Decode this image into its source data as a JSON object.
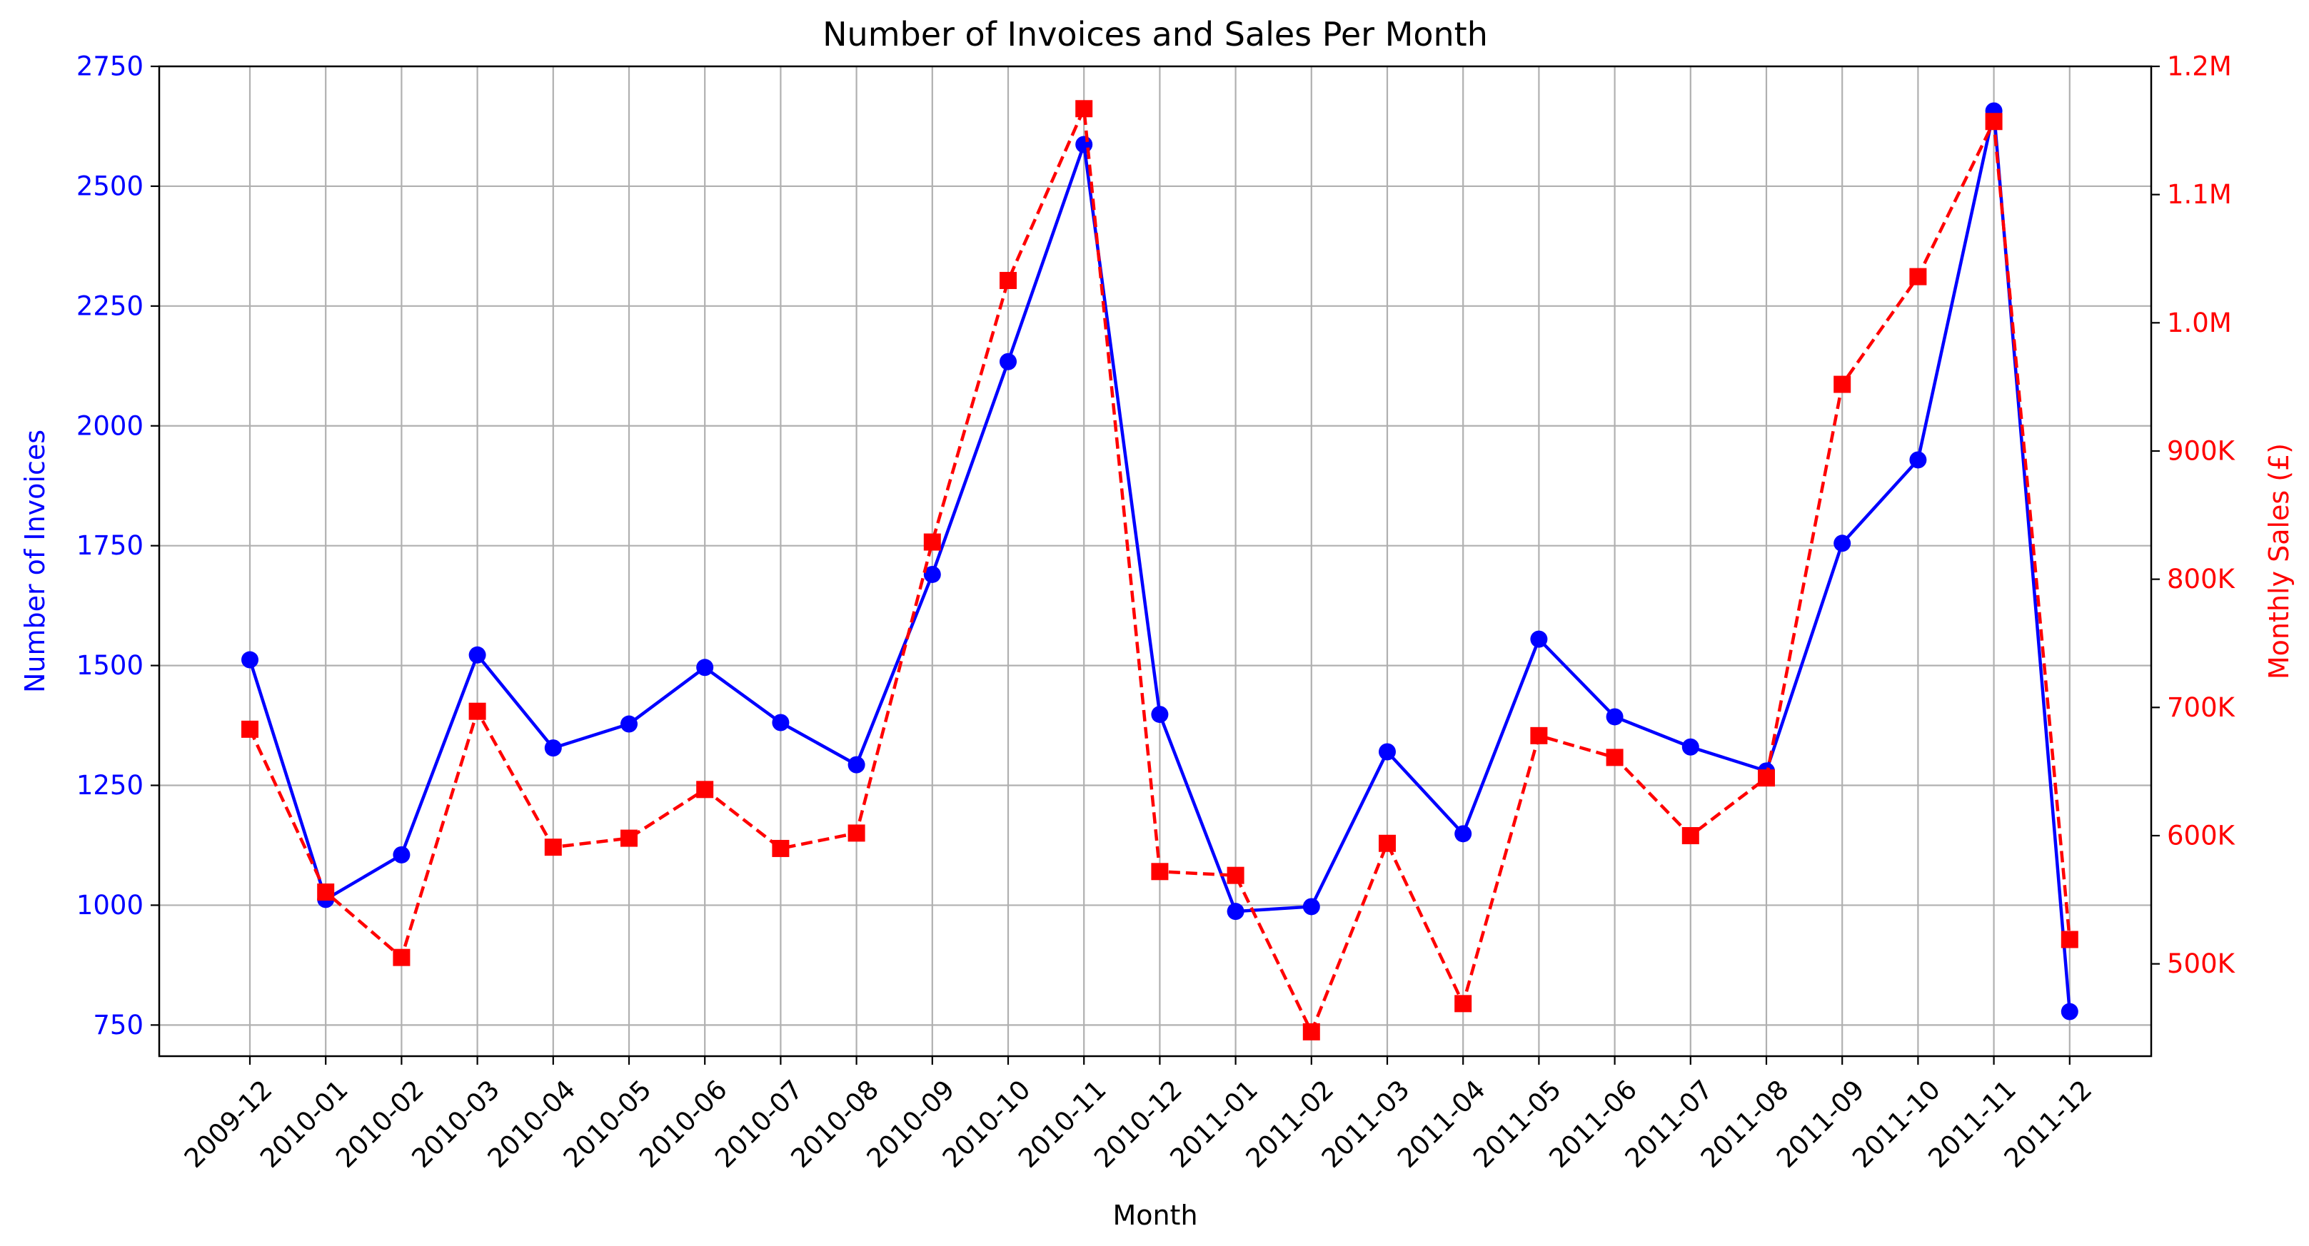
{
  "chart_data": {
    "type": "line",
    "title": "Number of Invoices and Sales Per Month",
    "xlabel": "Month",
    "ylabel_left": "Number of Invoices",
    "ylabel_right": "Monthly Sales (£)",
    "categories": [
      "2009-12",
      "2010-01",
      "2010-02",
      "2010-03",
      "2010-04",
      "2010-05",
      "2010-06",
      "2010-07",
      "2010-08",
      "2010-09",
      "2010-10",
      "2010-11",
      "2010-12",
      "2011-01",
      "2011-02",
      "2011-03",
      "2011-04",
      "2011-05",
      "2011-06",
      "2011-07",
      "2011-08",
      "2011-09",
      "2011-10",
      "2011-11",
      "2011-12"
    ],
    "left_axis": {
      "ylim": [
        685,
        2750
      ],
      "ticks": [
        750,
        1000,
        1250,
        1500,
        1750,
        2000,
        2250,
        2500,
        2750
      ],
      "tick_labels": [
        "750",
        "1000",
        "1250",
        "1500",
        "1750",
        "2000",
        "2250",
        "2500",
        "2750"
      ],
      "color": "#0000ff"
    },
    "right_axis": {
      "ylim": [
        428000,
        1200000
      ],
      "ticks": [
        500000,
        600000,
        700000,
        800000,
        900000,
        1000000,
        1100000,
        1200000
      ],
      "tick_labels": [
        "500K",
        "600K",
        "700K",
        "800K",
        "900K",
        "1.0M",
        "1.1M",
        "1.2M"
      ],
      "color": "#ff0000"
    },
    "series": [
      {
        "axis": "left",
        "color": "#0000ff",
        "line_style": "solid",
        "marker": "circle",
        "values": [
          1512,
          1012,
          1105,
          1522,
          1328,
          1378,
          1496,
          1381,
          1293,
          1690,
          2134,
          2587,
          1398,
          987,
          997,
          1320,
          1149,
          1555,
          1393,
          1330,
          1280,
          1755,
          1929,
          2657,
          778
        ]
      },
      {
        "axis": "right",
        "color": "#ff0000",
        "line_style": "dashed",
        "marker": "square",
        "values": [
          683000,
          556000,
          505000,
          697000,
          591000,
          598000,
          636000,
          590000,
          602000,
          829000,
          1033000,
          1167000,
          572000,
          569000,
          447000,
          594000,
          469000,
          678000,
          661000,
          600000,
          645000,
          952000,
          1036000,
          1157000,
          519000
        ]
      }
    ],
    "grid": true
  }
}
